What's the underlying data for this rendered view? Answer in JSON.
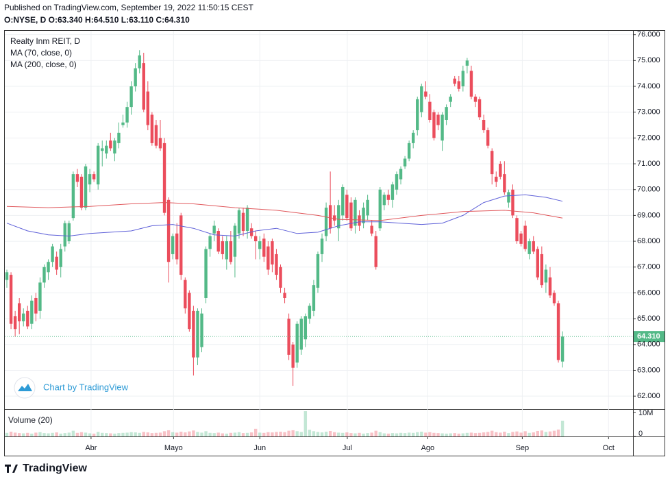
{
  "header": {
    "published": "Published on TradingView.com, September 19, 2022 11:50:15 CEST",
    "quote": "O:NYSE, D  O:63.340 H:64.510 L:63.110 C:64.310"
  },
  "footer": {
    "brand": "TradingView"
  },
  "chart_data": {
    "type": "candlestick",
    "legend": [
      "Realty Inm REIT, D"
    ],
    "watermark": "Chart by TradingView",
    "up_color": "#53b987",
    "down_color": "#eb4d5c",
    "ylim": [
      61.5,
      76.15
    ],
    "yticks": [
      {
        "value": 62,
        "label": "62.000"
      },
      {
        "value": 63,
        "label": "63.000"
      },
      {
        "value": 64,
        "label": "64.000"
      },
      {
        "value": 65,
        "label": "65.000"
      },
      {
        "value": 66,
        "label": "66.000"
      },
      {
        "value": 67,
        "label": "67.000"
      },
      {
        "value": 68,
        "label": "68.000"
      },
      {
        "value": 69,
        "label": "69.000"
      },
      {
        "value": 70,
        "label": "70.000"
      },
      {
        "value": 71,
        "label": "71.000"
      },
      {
        "value": 72,
        "label": "72.000"
      },
      {
        "value": 73,
        "label": "73.000"
      },
      {
        "value": 74,
        "label": "74.000"
      },
      {
        "value": 75,
        "label": "75.000"
      },
      {
        "value": 76,
        "label": "76.000"
      }
    ],
    "xlim": [
      -0.5,
      151.0
    ],
    "xticks": [
      {
        "value": 20.3,
        "label": "Abr"
      },
      {
        "value": 40.2,
        "label": "Mayo"
      },
      {
        "value": 61.0,
        "label": "Jun"
      },
      {
        "value": 82.1,
        "label": "Jul"
      },
      {
        "value": 101.5,
        "label": "Ago"
      },
      {
        "value": 124.3,
        "label": "Sep"
      },
      {
        "value": 145.1,
        "label": "Oct"
      }
    ],
    "grid": true,
    "last_price": {
      "value": 64.31,
      "label": "64.310"
    },
    "candles": [
      [
        66.5,
        66.9,
        66.2,
        66.8
      ],
      [
        66.7,
        66.8,
        64.6,
        64.8
      ],
      [
        65.1,
        65.3,
        64.3,
        64.6
      ],
      [
        65.6,
        65.8,
        64.4,
        64.9
      ],
      [
        64.9,
        65.4,
        64.7,
        65.2
      ],
      [
        65.3,
        65.5,
        64.6,
        64.7
      ],
      [
        64.8,
        65.9,
        64.6,
        65.7
      ],
      [
        65.8,
        66.0,
        64.9,
        65.2
      ],
      [
        65.3,
        66.6,
        65.0,
        66.4
      ],
      [
        66.4,
        67.1,
        66.2,
        67.0
      ],
      [
        66.8,
        67.3,
        66.5,
        67.2
      ],
      [
        67.2,
        67.9,
        67.0,
        67.8
      ],
      [
        67.4,
        67.6,
        66.7,
        66.9
      ],
      [
        67.0,
        67.9,
        66.6,
        67.7
      ],
      [
        67.8,
        68.8,
        67.6,
        68.7
      ],
      [
        68.0,
        68.8,
        67.9,
        68.7
      ],
      [
        68.9,
        70.7,
        68.8,
        70.6
      ],
      [
        70.6,
        70.8,
        70.1,
        70.3
      ],
      [
        70.5,
        70.6,
        69.2,
        69.3
      ],
      [
        69.3,
        71.0,
        69.2,
        70.9
      ],
      [
        70.2,
        70.8,
        69.9,
        70.6
      ],
      [
        70.6,
        70.7,
        70.3,
        70.4
      ],
      [
        70.2,
        71.8,
        70.0,
        71.7
      ],
      [
        71.5,
        71.9,
        70.9,
        71.6
      ],
      [
        71.4,
        71.9,
        71.2,
        71.7
      ],
      [
        71.9,
        72.2,
        71.5,
        71.6
      ],
      [
        71.4,
        72.0,
        71.1,
        71.9
      ],
      [
        71.8,
        72.6,
        71.6,
        72.2
      ],
      [
        72.5,
        72.9,
        72.4,
        72.6
      ],
      [
        72.6,
        73.4,
        72.4,
        73.2
      ],
      [
        73.2,
        74.2,
        72.9,
        74.0
      ],
      [
        74.0,
        74.9,
        73.8,
        74.7
      ],
      [
        74.7,
        75.4,
        74.5,
        75.2
      ],
      [
        74.9,
        75.3,
        73.0,
        73.1
      ],
      [
        73.8,
        74.2,
        72.3,
        72.5
      ],
      [
        72.9,
        73.0,
        71.7,
        71.8
      ],
      [
        72.5,
        72.7,
        71.6,
        71.7
      ],
      [
        72.0,
        72.7,
        71.5,
        71.6
      ],
      [
        71.8,
        72.0,
        69.0,
        69.1
      ],
      [
        69.6,
        69.7,
        66.4,
        67.2
      ],
      [
        67.5,
        68.3,
        67.3,
        68.2
      ],
      [
        68.3,
        68.7,
        67.1,
        67.3
      ],
      [
        69.0,
        69.1,
        66.5,
        66.7
      ],
      [
        66.5,
        66.6,
        65.2,
        65.4
      ],
      [
        66.0,
        66.1,
        64.5,
        64.6
      ],
      [
        65.3,
        65.5,
        62.8,
        63.5
      ],
      [
        63.5,
        65.4,
        63.2,
        65.3
      ],
      [
        63.9,
        65.4,
        63.7,
        65.2
      ],
      [
        65.8,
        67.8,
        65.6,
        67.7
      ],
      [
        67.7,
        68.3,
        67.4,
        68.2
      ],
      [
        68.3,
        68.8,
        68.0,
        68.6
      ],
      [
        68.4,
        68.5,
        67.5,
        67.6
      ],
      [
        68.0,
        68.2,
        67.3,
        67.5
      ],
      [
        67.3,
        68.2,
        66.9,
        68.0
      ],
      [
        68.0,
        68.4,
        67.1,
        67.2
      ],
      [
        67.4,
        68.7,
        66.6,
        68.6
      ],
      [
        68.3,
        69.3,
        68.1,
        69.2
      ],
      [
        69.1,
        69.3,
        68.2,
        68.4
      ],
      [
        68.4,
        69.4,
        68.1,
        69.3
      ],
      [
        68.5,
        68.7,
        68.1,
        68.2
      ],
      [
        68.2,
        68.4,
        67.3,
        68.0
      ],
      [
        67.7,
        68.2,
        67.3,
        68.0
      ],
      [
        68.1,
        68.3,
        67.2,
        67.4
      ],
      [
        67.8,
        68.0,
        66.7,
        66.9
      ],
      [
        68.0,
        68.1,
        66.8,
        67.1
      ],
      [
        67.5,
        67.7,
        66.5,
        66.7
      ],
      [
        67.0,
        67.1,
        66.0,
        66.2
      ],
      [
        66.0,
        66.2,
        65.6,
        65.8
      ],
      [
        65.0,
        65.2,
        63.4,
        63.6
      ],
      [
        64.0,
        64.1,
        62.4,
        63.1
      ],
      [
        63.3,
        64.9,
        63.1,
        64.8
      ],
      [
        63.8,
        65.1,
        63.6,
        65.0
      ],
      [
        64.2,
        65.2,
        63.9,
        65.1
      ],
      [
        65.0,
        65.6,
        64.8,
        65.5
      ],
      [
        65.3,
        66.5,
        65.1,
        66.3
      ],
      [
        66.2,
        67.6,
        66.0,
        67.5
      ],
      [
        67.5,
        68.3,
        67.2,
        68.1
      ],
      [
        68.2,
        69.5,
        68.0,
        69.3
      ],
      [
        69.4,
        70.7,
        68.3,
        68.5
      ],
      [
        69.0,
        69.4,
        68.6,
        68.8
      ],
      [
        68.5,
        69.6,
        68.0,
        69.4
      ],
      [
        69.0,
        70.2,
        68.8,
        70.1
      ],
      [
        69.8,
        70.0,
        68.8,
        68.9
      ],
      [
        69.5,
        69.7,
        68.4,
        68.5
      ],
      [
        68.6,
        69.7,
        68.3,
        69.6
      ],
      [
        69.0,
        69.2,
        68.4,
        68.6
      ],
      [
        68.7,
        69.5,
        68.5,
        69.3
      ],
      [
        69.0,
        69.8,
        68.8,
        69.6
      ],
      [
        68.6,
        68.8,
        68.2,
        68.3
      ],
      [
        68.2,
        68.4,
        66.9,
        67.0
      ],
      [
        68.5,
        70.1,
        68.4,
        70.0
      ],
      [
        69.4,
        69.9,
        69.2,
        69.8
      ],
      [
        69.8,
        70.0,
        69.4,
        69.6
      ],
      [
        69.6,
        70.3,
        69.3,
        70.2
      ],
      [
        70.0,
        70.7,
        69.8,
        70.6
      ],
      [
        70.4,
        70.9,
        70.2,
        70.8
      ],
      [
        70.9,
        71.3,
        70.8,
        71.2
      ],
      [
        71.2,
        71.9,
        71.1,
        71.8
      ],
      [
        71.8,
        72.3,
        71.6,
        72.2
      ],
      [
        72.3,
        73.6,
        72.1,
        73.5
      ],
      [
        73.0,
        74.1,
        72.8,
        74.0
      ],
      [
        73.8,
        74.2,
        73.5,
        73.6
      ],
      [
        73.4,
        73.7,
        72.6,
        72.7
      ],
      [
        73.0,
        73.1,
        71.9,
        72.0
      ],
      [
        72.9,
        73.0,
        72.3,
        72.5
      ],
      [
        71.9,
        73.0,
        71.5,
        72.9
      ],
      [
        72.7,
        73.3,
        72.5,
        73.2
      ],
      [
        73.4,
        73.7,
        73.2,
        73.6
      ],
      [
        74.3,
        74.4,
        74.0,
        74.1
      ],
      [
        74.2,
        74.4,
        73.8,
        73.9
      ],
      [
        74.0,
        74.8,
        73.8,
        74.6
      ],
      [
        74.8,
        75.1,
        74.5,
        75.0
      ],
      [
        74.6,
        74.8,
        73.5,
        73.6
      ],
      [
        73.6,
        73.7,
        73.2,
        73.4
      ],
      [
        73.5,
        73.6,
        72.7,
        72.8
      ],
      [
        72.7,
        72.9,
        72.2,
        72.3
      ],
      [
        72.3,
        72.4,
        71.6,
        71.7
      ],
      [
        71.5,
        71.6,
        70.2,
        70.6
      ],
      [
        70.5,
        70.7,
        70.1,
        70.3
      ],
      [
        71.0,
        71.1,
        70.4,
        70.5
      ],
      [
        70.6,
        71.1,
        69.8,
        69.9
      ],
      [
        69.5,
        70.0,
        69.3,
        69.9
      ],
      [
        70.0,
        70.2,
        68.9,
        69.0
      ],
      [
        68.9,
        69.0,
        67.9,
        68.0
      ],
      [
        68.3,
        68.4,
        67.8,
        67.9
      ],
      [
        68.6,
        68.8,
        67.6,
        67.7
      ],
      [
        67.5,
        68.1,
        67.3,
        68.0
      ],
      [
        68.0,
        68.2,
        67.5,
        67.6
      ],
      [
        67.7,
        67.8,
        66.5,
        66.6
      ],
      [
        67.5,
        67.8,
        66.2,
        66.3
      ],
      [
        66.4,
        67.1,
        66.0,
        66.9
      ],
      [
        66.6,
        67.0,
        65.8,
        65.9
      ],
      [
        66.0,
        66.1,
        65.5,
        65.6
      ],
      [
        65.6,
        65.7,
        63.3,
        63.4
      ],
      [
        63.34,
        64.51,
        63.11,
        64.31
      ]
    ],
    "series": [
      {
        "name": "MA (70, close, 0)",
        "color": "#5d5fd8",
        "x": [
          0,
          5,
          10,
          15,
          20,
          25,
          30,
          35,
          40,
          45,
          50,
          55,
          60,
          65,
          70,
          75,
          80,
          85,
          90,
          95,
          100,
          105,
          110,
          115,
          120,
          125,
          130,
          134
        ],
        "values": [
          68.7,
          68.4,
          68.25,
          68.2,
          68.3,
          68.35,
          68.4,
          68.6,
          68.65,
          68.5,
          68.25,
          68.2,
          68.4,
          68.5,
          68.3,
          68.35,
          68.6,
          68.75,
          68.75,
          68.7,
          68.65,
          68.7,
          69.0,
          69.5,
          69.75,
          69.8,
          69.7,
          69.55
        ]
      },
      {
        "name": "MA (200, close, 0)",
        "color": "#e0575b",
        "x": [
          0,
          10,
          20,
          30,
          38,
          45,
          55,
          65,
          75,
          80,
          90,
          100,
          110,
          120,
          127,
          134
        ],
        "values": [
          69.35,
          69.3,
          69.35,
          69.45,
          69.5,
          69.45,
          69.3,
          69.2,
          69.0,
          68.85,
          68.8,
          69.0,
          69.15,
          69.2,
          69.1,
          68.9
        ]
      }
    ],
    "volume": {
      "title": "Volume (20)",
      "ylim": [
        0,
        10.9
      ],
      "yticks": [
        0,
        {
          "value": 10,
          "label": "10M"
        }
      ],
      "values": [
        1.5,
        2.0,
        1.6,
        1.4,
        1.3,
        1.5,
        1.2,
        1.6,
        1.8,
        1.4,
        1.3,
        1.5,
        1.7,
        1.2,
        1.4,
        1.6,
        2.4,
        1.5,
        1.8,
        1.6,
        1.3,
        1.2,
        1.9,
        1.5,
        1.4,
        1.3,
        1.2,
        1.4,
        1.5,
        1.6,
        1.8,
        1.7,
        1.5,
        1.9,
        1.7,
        1.4,
        1.5,
        1.6,
        2.2,
        2.6,
        1.8,
        1.6,
        2.0,
        1.7,
        2.1,
        2.5,
        1.9,
        1.6,
        2.2,
        1.5,
        1.4,
        1.6,
        1.3,
        1.2,
        1.5,
        1.6,
        1.8,
        1.4,
        1.5,
        1.7,
        3.2,
        1.6,
        1.5,
        1.8,
        1.7,
        1.9,
        2.0,
        1.8,
        2.4,
        2.6,
        2.2,
        1.9,
        10.6,
        2.8,
        2.2,
        1.9,
        1.7,
        2.0,
        2.3,
        1.8,
        1.6,
        1.5,
        1.7,
        1.4,
        1.3,
        1.5,
        1.2,
        1.4,
        1.6,
        2.4,
        1.8,
        1.3,
        1.2,
        1.4,
        1.3,
        1.5,
        1.4,
        1.6,
        1.5,
        1.8,
        2.0,
        1.6,
        1.8,
        1.5,
        1.4,
        1.3,
        1.2,
        1.3,
        1.4,
        1.2,
        1.3,
        1.5,
        1.6,
        1.4,
        1.5,
        1.7,
        1.9,
        2.4,
        1.8,
        1.6,
        2.0,
        1.4,
        1.9,
        2.1,
        1.6,
        2.2,
        1.5,
        1.7,
        2.3,
        2.5,
        1.9,
        2.1,
        2.4,
        2.9,
        6.6
      ]
    }
  }
}
